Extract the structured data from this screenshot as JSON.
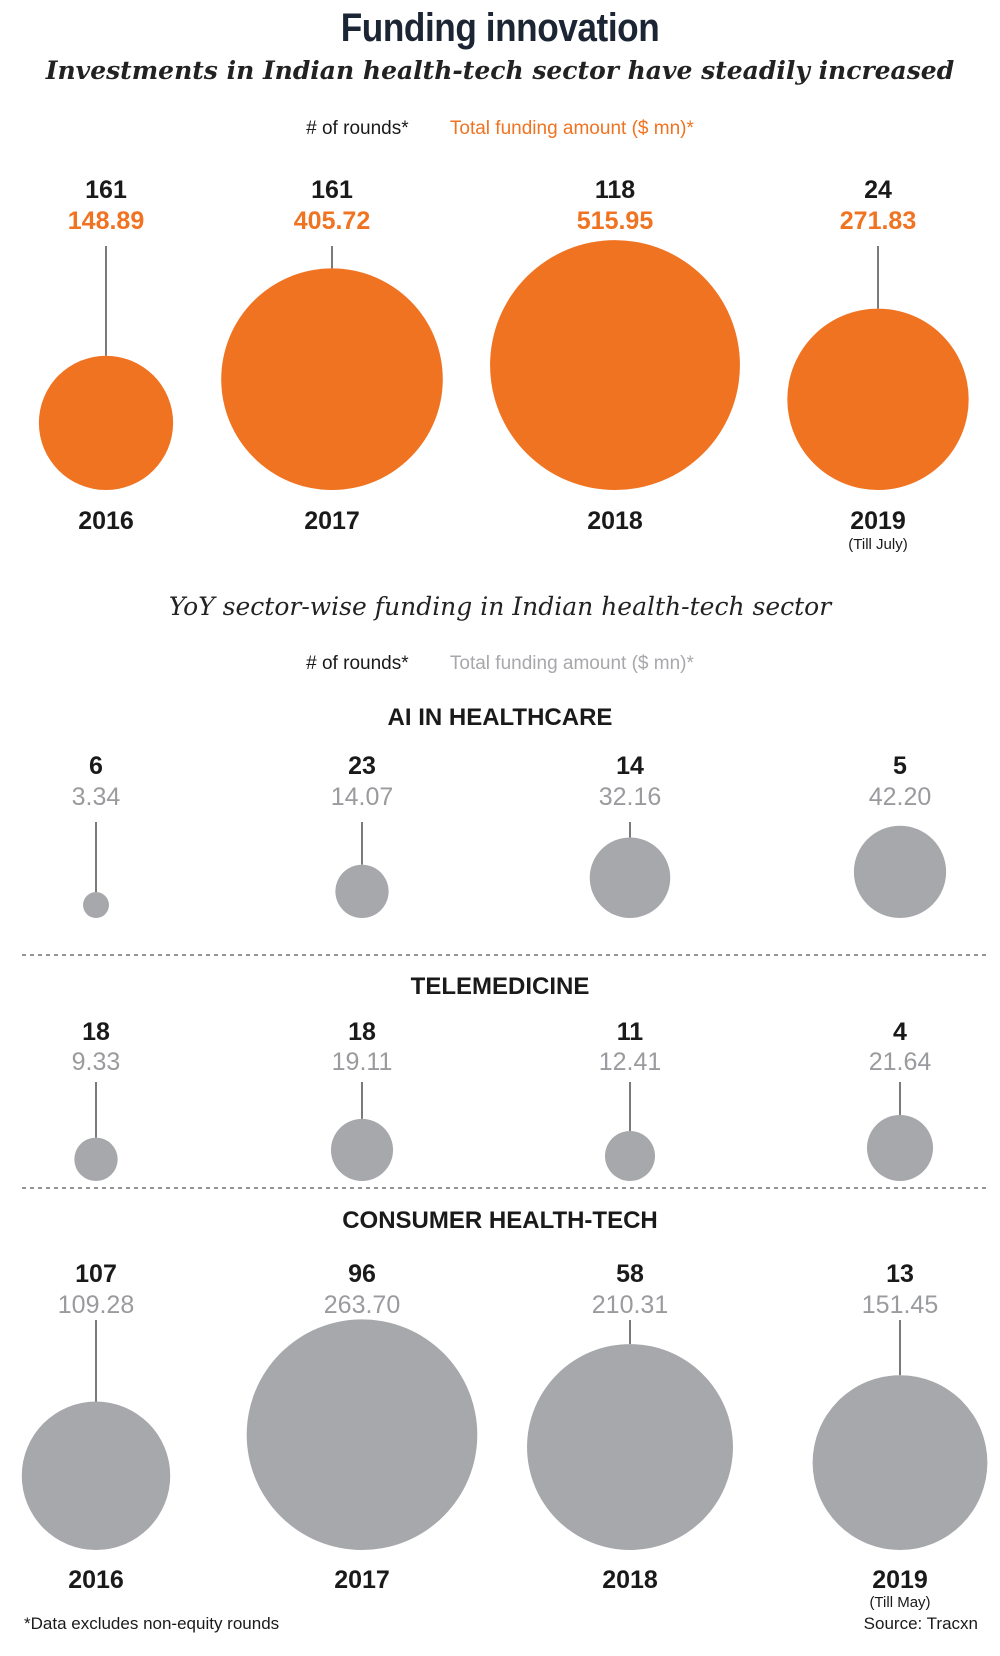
{
  "title": "Funding innovation",
  "subtitle": "Investments in Indian health-tech sector have steadily increased",
  "legend_rounds": "# of rounds*",
  "legend_amount": "Total funding amount ($ mn)*",
  "subtitle2": "YoY sector-wise funding in Indian health-tech sector",
  "footnote": "*Data excludes non-equity rounds",
  "source": "Source: Tracxn",
  "colors": {
    "orange": "#f07322",
    "gray": "#a7a8ab",
    "gray_text": "#9a9b9e",
    "dark": "#1a1a1a"
  },
  "chart_data": [
    {
      "type": "bubble",
      "title": "Investments in Indian health-tech sector have steadily increased",
      "categories": [
        "2016",
        "2017",
        "2018",
        "2019"
      ],
      "category_notes": [
        "",
        "",
        "",
        "(Till July)"
      ],
      "series": [
        {
          "name": "# of rounds*",
          "values": [
            161,
            161,
            118,
            24
          ]
        },
        {
          "name": "Total funding amount ($ mn)*",
          "values": [
            148.89,
            405.72,
            515.95,
            271.83
          ]
        }
      ],
      "value_labels": [
        "148.89",
        "405.72",
        "515.95",
        "271.83"
      ]
    },
    {
      "type": "bubble",
      "title": "AI IN HEALTHCARE",
      "categories": [
        "2016",
        "2017",
        "2018",
        "2019"
      ],
      "series": [
        {
          "name": "# of rounds*",
          "values": [
            6,
            23,
            14,
            5
          ]
        },
        {
          "name": "Total funding amount ($ mn)*",
          "values": [
            3.34,
            14.07,
            32.16,
            42.2
          ]
        }
      ],
      "value_labels": [
        "3.34",
        "14.07",
        "32.16",
        "42.20"
      ]
    },
    {
      "type": "bubble",
      "title": "TELEMEDICINE",
      "categories": [
        "2016",
        "2017",
        "2018",
        "2019"
      ],
      "series": [
        {
          "name": "# of rounds*",
          "values": [
            18,
            18,
            11,
            4
          ]
        },
        {
          "name": "Total funding amount ($ mn)*",
          "values": [
            9.33,
            19.11,
            12.41,
            21.64
          ]
        }
      ],
      "value_labels": [
        "9.33",
        "19.11",
        "12.41",
        "21.64"
      ]
    },
    {
      "type": "bubble",
      "title": "CONSUMER HEALTH-TECH",
      "categories": [
        "2016",
        "2017",
        "2018",
        "2019"
      ],
      "category_notes": [
        "",
        "",
        "",
        "(Till May)"
      ],
      "series": [
        {
          "name": "# of rounds*",
          "values": [
            107,
            96,
            58,
            13
          ]
        },
        {
          "name": "Total funding amount ($ mn)*",
          "values": [
            109.28,
            263.7,
            210.31,
            151.45
          ]
        }
      ],
      "value_labels": [
        "109.28",
        "263.70",
        "210.31",
        "151.45"
      ]
    }
  ]
}
